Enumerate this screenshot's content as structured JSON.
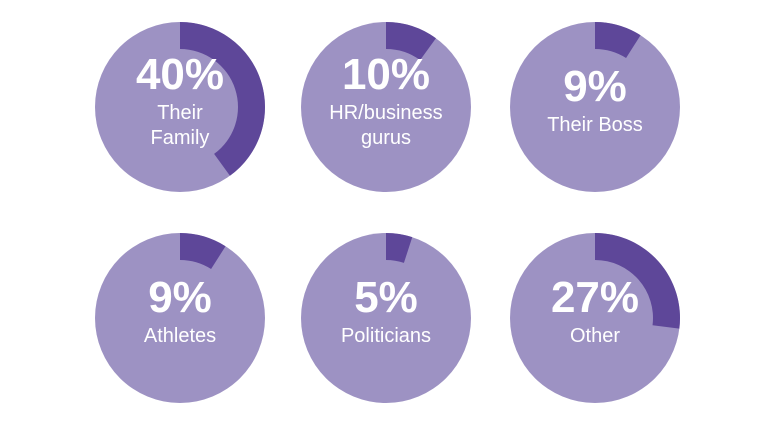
{
  "colors": {
    "ring_base": "#9d92c3",
    "ring_highlight": "#5e4799",
    "text": "#ffffff",
    "background": "#ffffff"
  },
  "chart_data": {
    "type": "pie",
    "style": "donut-ring-progress",
    "items": [
      {
        "value": 40,
        "value_label": "40%",
        "label_lines": [
          "Their",
          "Family"
        ]
      },
      {
        "value": 10,
        "value_label": "10%",
        "label_lines": [
          "HR/business",
          "gurus"
        ]
      },
      {
        "value": 9,
        "value_label": "9%",
        "label_lines": [
          "Their Boss"
        ]
      },
      {
        "value": 9,
        "value_label": "9%",
        "label_lines": [
          "Athletes"
        ]
      },
      {
        "value": 5,
        "value_label": "5%",
        "label_lines": [
          "Politicians"
        ]
      },
      {
        "value": 27,
        "value_label": "27%",
        "label_lines": [
          "Other"
        ]
      }
    ]
  }
}
